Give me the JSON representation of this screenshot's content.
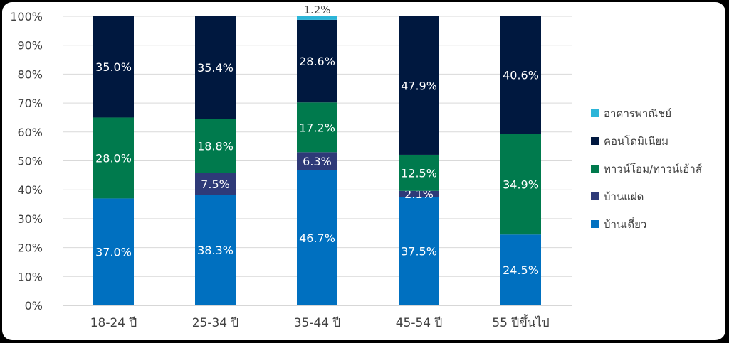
{
  "chart_data": {
    "type": "bar",
    "stacked": true,
    "categories": [
      "18-24 ปี",
      "25-34 ปี",
      "35-44 ปี",
      "45-54 ปี",
      "55 ปีขึ้นไป"
    ],
    "ylim": [
      0,
      100
    ],
    "yticks": [
      "0%",
      "10%",
      "20%",
      "30%",
      "40%",
      "50%",
      "60%",
      "70%",
      "80%",
      "90%",
      "100%"
    ],
    "grid": true,
    "legend_position": "right",
    "series": [
      {
        "name": "บ้านเดี่ยว",
        "color": "#0070C0",
        "values": [
          37.0,
          38.3,
          46.7,
          37.5,
          24.5
        ],
        "labels": [
          "37.0%",
          "38.3%",
          "46.7%",
          "37.5%",
          "24.5%"
        ]
      },
      {
        "name": "บ้านแฝด",
        "color": "#2E3A78",
        "values": [
          0,
          7.5,
          6.3,
          2.1,
          0
        ],
        "labels": [
          "",
          "7.5%",
          "6.3%",
          "2.1%",
          ""
        ]
      },
      {
        "name": "ทาวน์โฮม/ทาวน์เฮ้าส์",
        "color": "#007A4D",
        "values": [
          28.0,
          18.8,
          17.2,
          12.5,
          34.9
        ],
        "labels": [
          "28.0%",
          "18.8%",
          "17.2%",
          "12.5%",
          "34.9%"
        ]
      },
      {
        "name": "คอนโดมิเนียม",
        "color": "#00183F",
        "values": [
          35.0,
          35.4,
          28.6,
          47.9,
          40.6
        ],
        "labels": [
          "35.0%",
          "35.4%",
          "28.6%",
          "47.9%",
          "40.6%"
        ]
      },
      {
        "name": "อาคารพาณิชย์",
        "color": "#2CB5D8",
        "values": [
          0,
          0,
          1.2,
          0,
          0
        ],
        "labels": [
          "",
          "",
          "1.2%",
          "",
          ""
        ]
      }
    ],
    "legend_order": [
      4,
      3,
      2,
      1,
      0
    ]
  }
}
